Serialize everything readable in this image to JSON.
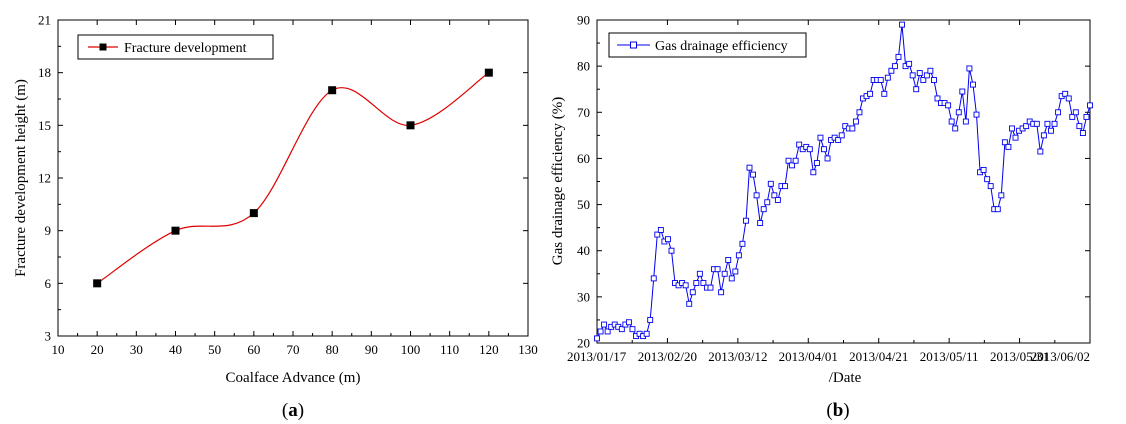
{
  "chart_data": [
    {
      "type": "line",
      "panel_label": "a",
      "xlabel": "Coalface Advance  (m)",
      "ylabel": "Fracture development height (m)",
      "xlim": [
        10,
        130
      ],
      "ylim": [
        3,
        21
      ],
      "xticks": [
        10,
        20,
        30,
        40,
        50,
        60,
        70,
        80,
        90,
        100,
        110,
        120,
        130
      ],
      "yticks": [
        3,
        6,
        9,
        12,
        15,
        18,
        21
      ],
      "legend_position": "top-left",
      "colors": {
        "line": "#e00000",
        "marker": "#000000"
      },
      "series": [
        {
          "name": "Fracture development",
          "x": [
            20,
            40,
            60,
            80,
            100,
            120
          ],
          "y": [
            6,
            9,
            10,
            17,
            15,
            18
          ]
        }
      ]
    },
    {
      "type": "line",
      "panel_label": "b",
      "xlabel": "/Date",
      "ylabel": "Gas drainage efficiency (%)",
      "ylim": [
        20,
        90
      ],
      "yticks": [
        20,
        30,
        40,
        50,
        60,
        70,
        80,
        90
      ],
      "x_tick_labels": [
        "2013/01/17",
        "2013/02/20",
        "2013/03/12",
        "2013/04/01",
        "2013/04/21",
        "2013/05/11",
        "2013/05/31",
        "2013/06/02"
      ],
      "legend_position": "top-left",
      "colors": {
        "line": "#0000ee"
      },
      "series": [
        {
          "name": "Gas drainage efficiency",
          "values": [
            21,
            22.5,
            24,
            22.5,
            23.5,
            24,
            23.5,
            23,
            24,
            24.5,
            23,
            21.5,
            22,
            21.5,
            22,
            25,
            34,
            43.5,
            44.5,
            42,
            42.5,
            40,
            33,
            32.5,
            33,
            32.5,
            28.5,
            31,
            33,
            35,
            33,
            32,
            32,
            36,
            36,
            31,
            35,
            38,
            34,
            35.5,
            39,
            41.5,
            46.5,
            58,
            56.5,
            52,
            46,
            49,
            50.5,
            54.5,
            52,
            51,
            54,
            54,
            59.5,
            58.5,
            59.5,
            63,
            62,
            62.5,
            62,
            57,
            59,
            64.5,
            62,
            60,
            64,
            64.5,
            64,
            65,
            67,
            66.5,
            66.5,
            68,
            70,
            73,
            73.5,
            74,
            77,
            77,
            77,
            74,
            77.5,
            79,
            80,
            82,
            89,
            80,
            80.5,
            78,
            75,
            78.5,
            77,
            78,
            79,
            77,
            73,
            72,
            72,
            71.5,
            68,
            66.5,
            70,
            74.5,
            68,
            79.5,
            76,
            69.5,
            57,
            57.5,
            55.5,
            54,
            49,
            49,
            52,
            63.5,
            62.5,
            66.5,
            64.5,
            66,
            66.5,
            67,
            68,
            67.5,
            67.5,
            61.5,
            65,
            67.5,
            66,
            67.5,
            70,
            73.5,
            74,
            73,
            69,
            70,
            67,
            65.5,
            69,
            71.5
          ]
        }
      ]
    }
  ]
}
